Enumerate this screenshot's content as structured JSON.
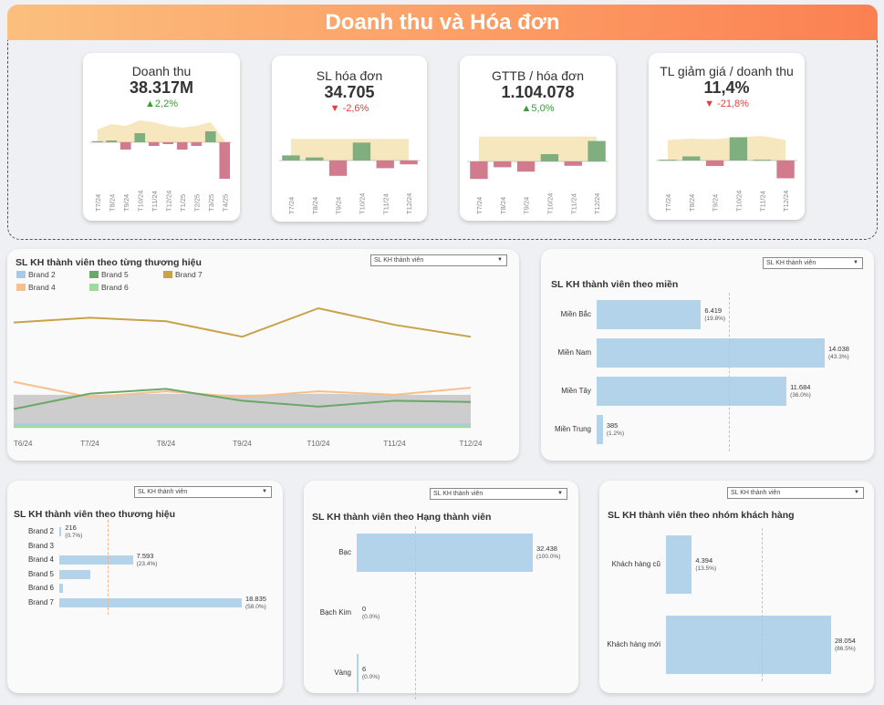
{
  "header": {
    "title": "Doanh thu và Hóa đơn"
  },
  "kpis": [
    {
      "title": "Doanh thu",
      "value": "38.317M",
      "delta": "▲2,2%",
      "trend": "up",
      "months": [
        "T7/24",
        "T8/24",
        "T9/24",
        "T10/24",
        "T11/24",
        "T12/24",
        "T1/25",
        "T2/25",
        "T3/25",
        "T4/25"
      ],
      "variance": [
        0.03,
        0.05,
        -0.2,
        0.25,
        -0.1,
        -0.05,
        -0.2,
        -0.1,
        0.3,
        -1.0
      ],
      "baseline": [
        0.35,
        0.5,
        0.45,
        0.6,
        0.55,
        0.45,
        0.4,
        0.45,
        0.55,
        0.05
      ]
    },
    {
      "title": "SL hóa đơn",
      "value": "34.705",
      "delta": "▼ -2,6%",
      "trend": "down",
      "months": [
        "T7/24",
        "T8/24",
        "T9/24",
        "T10/24",
        "T11/24",
        "T12/24"
      ],
      "variance": [
        0.2,
        0.12,
        -0.6,
        0.7,
        -0.3,
        -0.15
      ],
      "baseline": [
        0.85,
        0.85,
        0.85,
        0.85,
        0.85,
        0.85
      ]
    },
    {
      "title": "GTTB / hóa đơn",
      "value": "1.104.078",
      "delta": "▲5,0%",
      "trend": "up",
      "months": [
        "T7/24",
        "T8/24",
        "T9/24",
        "T10/24",
        "T11/24",
        "T12/24"
      ],
      "variance": [
        -0.6,
        -0.2,
        -0.35,
        0.25,
        -0.15,
        0.7
      ],
      "baseline": [
        0.85,
        0.85,
        0.85,
        0.85,
        0.85,
        0.85
      ]
    },
    {
      "title": "TL giảm giá / doanh thu",
      "value": "11,4%",
      "delta": "▼ -21,8%",
      "trend": "down",
      "months": [
        "T7/24",
        "T8/24",
        "T9/24",
        "T10/24",
        "T11/24",
        "T12/24"
      ],
      "variance": [
        0.03,
        0.15,
        -0.2,
        0.85,
        0.03,
        -0.65
      ],
      "baseline": [
        0.75,
        0.8,
        0.78,
        0.85,
        0.9,
        0.75
      ]
    }
  ],
  "brand_trend": {
    "title": "SL KH thành viên theo từng thương hiệu",
    "dropdown": "SL KH thành viên",
    "legend": [
      {
        "name": "Brand 2",
        "color": "#a9c9e8"
      },
      {
        "name": "Brand 5",
        "color": "#6aa86a"
      },
      {
        "name": "Brand 7",
        "color": "#c9a24a"
      },
      {
        "name": "Brand 4",
        "color": "#f6bf8e"
      },
      {
        "name": "Brand 6",
        "color": "#9ed99e"
      }
    ]
  },
  "chart_data": [
    {
      "type": "line",
      "x": [
        "T6/24",
        "T7/24",
        "T8/24",
        "T9/24",
        "T10/24",
        "T11/24",
        "T12/24"
      ],
      "series": [
        {
          "name": "Brand 7",
          "values": [
            0.88,
            0.92,
            0.89,
            0.76,
            1.0,
            0.86,
            0.76
          ]
        },
        {
          "name": "Brand 4",
          "values": [
            0.38,
            0.25,
            0.3,
            0.25,
            0.3,
            0.27,
            0.33
          ]
        },
        {
          "name": "Brand 5",
          "values": [
            0.15,
            0.28,
            0.32,
            0.22,
            0.17,
            0.22,
            0.21
          ]
        },
        {
          "name": "Brand 2",
          "values": [
            0.02,
            0.02,
            0.02,
            0.02,
            0.02,
            0.02,
            0.02
          ]
        },
        {
          "name": "Brand 6",
          "values": [
            0.0,
            0.0,
            0.0,
            0.0,
            0.0,
            0.0,
            0.0
          ]
        }
      ],
      "area_series": {
        "values": [
          0.27,
          0.27,
          0.28,
          0.27,
          0.28,
          0.27,
          0.27
        ]
      }
    },
    {
      "type": "bar",
      "title": "SL KH thành viên theo miền",
      "categories": [
        "Miền Bắc",
        "Miền Nam",
        "Miền Tây",
        "Miền Trung"
      ],
      "values": [
        6419,
        14038,
        11684,
        385
      ],
      "labels": [
        "6.419",
        "14.038",
        "11.684",
        "385"
      ],
      "pcts": [
        "(19.8%)",
        "(43.3%)",
        "(36.0%)",
        "(1.2%)"
      ]
    },
    {
      "type": "bar",
      "title": "SL KH thành viên theo thương hiệu",
      "categories": [
        "Brand 2",
        "Brand 3",
        "Brand 4",
        "Brand 5",
        "Brand 6",
        "Brand 7"
      ],
      "values": [
        216,
        0,
        7593,
        3200,
        350,
        18835
      ],
      "labels": [
        "216",
        "",
        "7.593",
        "",
        "",
        "18.835"
      ],
      "pcts": [
        "(0.7%)",
        "",
        "(23.4%)",
        "",
        "",
        "(58.0%)"
      ]
    },
    {
      "type": "bar",
      "title": "SL KH thành viên theo Hạng thành viên",
      "categories": [
        "Bạc",
        "Bạch Kim",
        "Vàng"
      ],
      "values": [
        32438,
        0,
        6
      ],
      "labels": [
        "32.438",
        "0",
        "6"
      ],
      "pcts": [
        "(100.0%)",
        "(0.0%)",
        "(0.0%)"
      ]
    },
    {
      "type": "bar",
      "title": "SL KH thành viên theo nhóm khách hàng",
      "categories": [
        "Khách hàng cũ",
        "Khách hàng mới"
      ],
      "values": [
        4394,
        28054
      ],
      "labels": [
        "4.394",
        "28.054"
      ],
      "pcts": [
        "(13.5%)",
        "(86.5%)"
      ]
    }
  ],
  "region": {
    "title": "SL KH thành viên theo miền",
    "dropdown": "SL KH thành viên"
  },
  "brand_bar": {
    "title": "SL KH thành viên theo thương hiệu",
    "dropdown": "SL KH thành viên"
  },
  "tier": {
    "title": "SL KH thành viên theo Hạng thành viên",
    "dropdown": "SL KH thành viên"
  },
  "group": {
    "title": "SL KH thành viên theo nhóm khách hàng",
    "dropdown": "SL KH thành viên"
  },
  "colors": {
    "bar": "#b3d3ea",
    "pos": "#7fae7f",
    "neg": "#d27b8e",
    "band": "#f6e7be",
    "ref": "#f4b48c"
  }
}
